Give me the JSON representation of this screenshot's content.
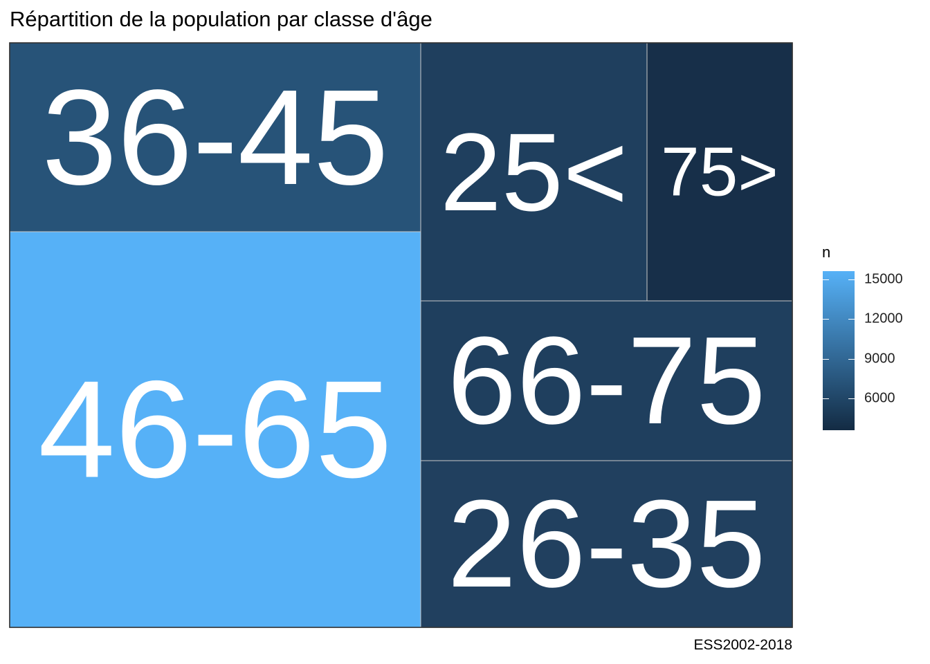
{
  "chart_data": {
    "type": "treemap",
    "title": "Répartition de la population par classe d'âge",
    "caption": "ESS2002-2018",
    "legend": {
      "title": "n",
      "range": [
        3600,
        15600
      ],
      "breaks": [
        6000,
        9000,
        12000,
        15000
      ],
      "break_labels": [
        "6000",
        "9000",
        "12000",
        "15000"
      ],
      "low_color": "#132b43",
      "high_color": "#56b1f7",
      "placement": "right"
    },
    "categories": [
      "46-65",
      "36-45",
      "25<",
      "75>",
      "66-75",
      "26-35"
    ],
    "values": [
      15500,
      8000,
      5900,
      4000,
      5300,
      5500
    ],
    "colors": {
      "46-65": "#56b1f7",
      "36-45": "#275378",
      "25<": "#1f3f5e",
      "75>": "#172f49",
      "66-75": "#1f3f5e",
      "26-35": "#21405f"
    }
  }
}
